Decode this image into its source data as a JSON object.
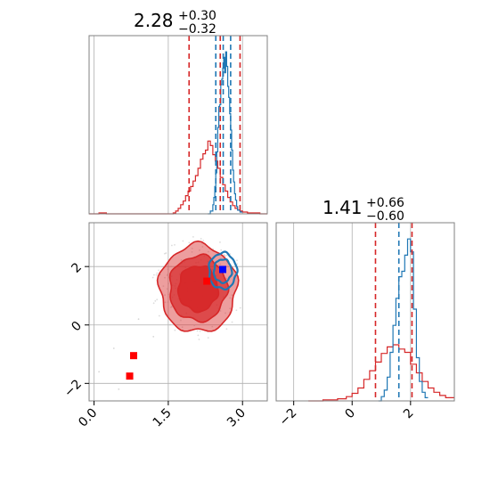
{
  "colors": {
    "posterior_a": "#d62728",
    "posterior_b": "#1f77b4",
    "marker_red": "#ff0000",
    "marker_blue": "#0000ff",
    "grid": "#b0b0b0",
    "axes": "#808080"
  },
  "chart_data": [
    {
      "type": "line",
      "panel": "marginal-top-left",
      "title_value": "2.28",
      "title_plus": "+0.30",
      "title_minus": "−0.32",
      "xlim": [
        -0.1,
        3.5
      ],
      "grid": true,
      "quantile_lines": [
        {
          "series": "red",
          "x": [
            1.92,
            2.55,
            2.95
          ]
        },
        {
          "series": "blue",
          "x": [
            2.46,
            2.61,
            2.76
          ]
        }
      ],
      "series": [
        {
          "color_key": "posterior_a",
          "style": "step",
          "x": [
            -0.1,
            0.1,
            0.25,
            0.4,
            0.55,
            0.7,
            0.85,
            1.0,
            1.15,
            1.3,
            1.45,
            1.6,
            1.65,
            1.7,
            1.75,
            1.8,
            1.85,
            1.9,
            1.95,
            2.0,
            2.05,
            2.1,
            2.15,
            2.2,
            2.25,
            2.3,
            2.35,
            2.4,
            2.45,
            2.5,
            2.55,
            2.6,
            2.65,
            2.7,
            2.75,
            2.8,
            2.85,
            2.9,
            2.95,
            3.0,
            3.1,
            3.2,
            3.35,
            3.5
          ],
          "y": [
            0,
            1,
            0,
            0,
            0,
            0,
            0,
            0,
            0,
            0,
            0,
            1,
            3,
            6,
            10,
            14,
            20,
            25,
            30,
            36,
            42,
            50,
            60,
            66,
            70,
            80,
            75,
            65,
            58,
            50,
            40,
            32,
            25,
            18,
            13,
            9,
            6,
            4,
            3,
            2,
            1,
            1,
            0,
            0
          ]
        },
        {
          "color_key": "posterior_b",
          "style": "step",
          "x": [
            2.3,
            2.35,
            2.4,
            2.42,
            2.44,
            2.46,
            2.48,
            2.5,
            2.52,
            2.54,
            2.56,
            2.58,
            2.6,
            2.62,
            2.64,
            2.66,
            2.68,
            2.7,
            2.72,
            2.74,
            2.76,
            2.78,
            2.8,
            2.82,
            2.84,
            2.86,
            2.88,
            2.9,
            2.95,
            3.0
          ],
          "y": [
            0,
            3,
            10,
            18,
            30,
            45,
            68,
            95,
            118,
            120,
            142,
            148,
            160,
            172,
            155,
            178,
            162,
            140,
            128,
            110,
            92,
            70,
            48,
            35,
            22,
            15,
            8,
            4,
            2,
            0
          ]
        }
      ]
    },
    {
      "type": "scatter",
      "panel": "joint-bottom-left",
      "xlim": [
        -0.1,
        3.5
      ],
      "ylim": [
        -2.6,
        3.5
      ],
      "grid": true,
      "x_ticks": [
        "0.0",
        "1.5",
        "3.0"
      ],
      "y_ticks": [
        "−2",
        "0",
        "2"
      ],
      "contours": [
        {
          "color_key": "posterior_a",
          "center": [
            2.1,
            1.25
          ],
          "levels": [
            {
              "rx": 0.78,
              "ry": 1.5,
              "opacity": 0.45
            },
            {
              "rx": 0.58,
              "ry": 1.12,
              "opacity": 0.7
            },
            {
              "rx": 0.4,
              "ry": 0.78,
              "opacity": 0.9
            }
          ]
        },
        {
          "color_key": "posterior_b",
          "center": [
            2.6,
            1.85
          ],
          "levels": [
            {
              "rx": 0.28,
              "ry": 0.62,
              "opacity": 0.0
            },
            {
              "rx": 0.18,
              "ry": 0.4,
              "opacity": 0.0
            }
          ]
        }
      ],
      "markers": [
        {
          "color_key": "marker_red",
          "x": 2.28,
          "y": 1.5
        },
        {
          "color_key": "marker_red",
          "x": 0.8,
          "y": -1.05
        },
        {
          "color_key": "marker_red",
          "x": 0.72,
          "y": -1.75
        },
        {
          "color_key": "marker_blue",
          "x": 2.6,
          "y": 1.9
        }
      ]
    },
    {
      "type": "line",
      "panel": "marginal-bottom-right",
      "title_value": "1.41",
      "title_plus": "+0.66",
      "title_minus": "−0.60",
      "xlim": [
        -2.6,
        3.5
      ],
      "grid": true,
      "x_ticks": [
        "−2",
        "0",
        "2"
      ],
      "quantile_lines": [
        {
          "series": "red",
          "x": [
            0.8,
            2.05
          ]
        },
        {
          "series": "blue",
          "x": [
            1.6
          ]
        }
      ],
      "series": [
        {
          "color_key": "posterior_a",
          "style": "step",
          "x": [
            -1.5,
            -1.0,
            -0.5,
            -0.2,
            0.0,
            0.2,
            0.4,
            0.6,
            0.8,
            1.0,
            1.2,
            1.4,
            1.6,
            1.8,
            2.0,
            2.2,
            2.4,
            2.6,
            2.8,
            3.0,
            3.2,
            3.5
          ],
          "y": [
            0,
            1,
            2,
            4,
            7,
            12,
            20,
            28,
            36,
            44,
            50,
            52,
            48,
            45,
            34,
            26,
            18,
            12,
            8,
            5,
            3,
            0
          ]
        },
        {
          "color_key": "posterior_b",
          "style": "step",
          "x": [
            0.9,
            1.0,
            1.1,
            1.2,
            1.3,
            1.4,
            1.5,
            1.6,
            1.7,
            1.8,
            1.9,
            2.0,
            2.1,
            2.2,
            2.3,
            2.4,
            2.5,
            2.6
          ],
          "y": [
            0,
            4,
            10,
            22,
            45,
            70,
            95,
            115,
            120,
            135,
            150,
            138,
            85,
            40,
            18,
            8,
            3,
            0
          ]
        }
      ]
    }
  ]
}
